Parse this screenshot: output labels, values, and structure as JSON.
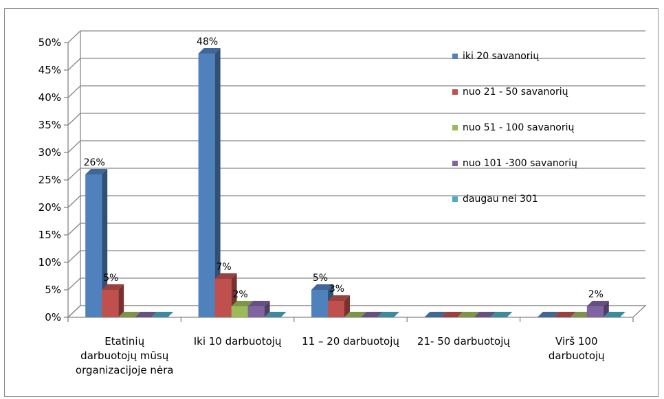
{
  "chart_data": {
    "type": "bar",
    "subtype": "3d-clustered-column",
    "categories": [
      [
        "Etatinių",
        "darbuotojų mūsų",
        "organizacijoje nėra"
      ],
      [
        "Iki 10 darbuotojų"
      ],
      [
        "11 – 20 darbuotojų"
      ],
      [
        "21- 50 darbuotojų"
      ],
      [
        "Virš 100",
        "darbuotojų"
      ]
    ],
    "series": [
      {
        "name": "iki 20 savanorių",
        "color": "#4f81bd",
        "values": [
          26,
          48,
          5,
          0,
          0
        ]
      },
      {
        "name": "nuo 21 - 50 savanorių",
        "color": "#c0504d",
        "values": [
          5,
          7,
          3,
          0,
          0
        ]
      },
      {
        "name": "nuo 51 - 100 savanorių",
        "color": "#9bbb59",
        "values": [
          0,
          2,
          0,
          0,
          0
        ]
      },
      {
        "name": "nuo 101 -300 savanorių",
        "color": "#8064a2",
        "values": [
          0,
          2,
          0,
          0,
          2
        ]
      },
      {
        "name": "daugau nei 301",
        "color": "#4bacc6",
        "values": [
          0,
          0,
          0,
          0,
          0
        ]
      }
    ],
    "data_labels": [
      {
        "series": 0,
        "category": 0,
        "text": "26%"
      },
      {
        "series": 1,
        "category": 0,
        "text": "5%"
      },
      {
        "series": 0,
        "category": 1,
        "text": "48%"
      },
      {
        "series": 1,
        "category": 1,
        "text": "7%"
      },
      {
        "series": 2,
        "category": 1,
        "text": "2%"
      },
      {
        "series": 0,
        "category": 2,
        "text": "5%"
      },
      {
        "series": 1,
        "category": 2,
        "text": "3%"
      },
      {
        "series": 3,
        "category": 4,
        "text": "2%"
      }
    ],
    "yticks": [
      "0%",
      "5%",
      "10%",
      "15%",
      "20%",
      "25%",
      "30%",
      "35%",
      "40%",
      "45%",
      "50%"
    ],
    "ylim": [
      0,
      50
    ],
    "grid": true,
    "legend_position": "top-right"
  }
}
